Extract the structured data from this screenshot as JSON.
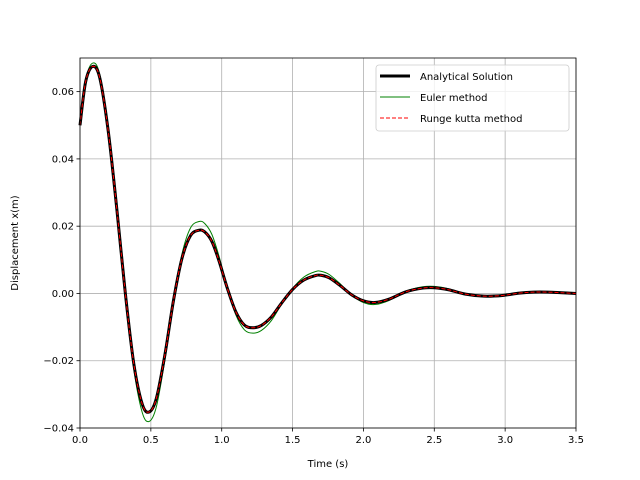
{
  "chart_data": {
    "type": "line",
    "title": "",
    "xlabel": "Time (s)",
    "ylabel": "Displacement x(m)",
    "xlim": [
      0.0,
      3.5
    ],
    "ylim": [
      -0.04,
      0.07
    ],
    "xticks": [
      0.0,
      0.5,
      1.0,
      1.5,
      2.0,
      2.5,
      3.0,
      3.5
    ],
    "xtick_labels": [
      "0.0",
      "0.5",
      "1.0",
      "1.5",
      "2.0",
      "2.5",
      "3.0",
      "3.5"
    ],
    "yticks": [
      -0.04,
      -0.02,
      0.0,
      0.02,
      0.04,
      0.06
    ],
    "ytick_labels": [
      "−0.04",
      "−0.02",
      "0.00",
      "0.02",
      "0.04",
      "0.06"
    ],
    "grid": true,
    "legend_position": "top-right",
    "series": [
      {
        "name": "Analytical Solution",
        "color": "#000000",
        "style": "solid-thick",
        "x": [
          0.0,
          0.04,
          0.09,
          0.14,
          0.2,
          0.26,
          0.32,
          0.38,
          0.44,
          0.49,
          0.54,
          0.6,
          0.66,
          0.72,
          0.78,
          0.84,
          0.88,
          0.93,
          0.98,
          1.04,
          1.1,
          1.16,
          1.22,
          1.28,
          1.35,
          1.42,
          1.5,
          1.58,
          1.66,
          1.7,
          1.76,
          1.84,
          1.92,
          2.0,
          2.08,
          2.18,
          2.3,
          2.42,
          2.5,
          2.6,
          2.72,
          2.85,
          2.98,
          3.1,
          3.2,
          3.3,
          3.4,
          3.5
        ],
        "y": [
          0.05,
          0.063,
          0.0675,
          0.064,
          0.048,
          0.025,
          0.0,
          -0.021,
          -0.033,
          -0.0352,
          -0.031,
          -0.018,
          -0.002,
          0.0105,
          0.0172,
          0.0188,
          0.0183,
          0.0155,
          0.0098,
          0.0015,
          -0.0055,
          -0.0094,
          -0.0102,
          -0.0095,
          -0.007,
          -0.003,
          0.0012,
          0.004,
          0.0053,
          0.0054,
          0.0046,
          0.0022,
          -0.0005,
          -0.0022,
          -0.0027,
          -0.0017,
          0.0005,
          0.0016,
          0.0017,
          0.0011,
          -0.0002,
          -0.0008,
          -0.0006,
          0.0001,
          0.0004,
          0.0004,
          0.0002,
          0.0
        ]
      },
      {
        "name": "Euler method",
        "color": "#008000",
        "style": "solid-thin",
        "x": [
          0.0,
          0.04,
          0.09,
          0.14,
          0.2,
          0.26,
          0.32,
          0.38,
          0.44,
          0.49,
          0.54,
          0.6,
          0.66,
          0.72,
          0.78,
          0.84,
          0.88,
          0.93,
          0.98,
          1.04,
          1.1,
          1.16,
          1.22,
          1.28,
          1.35,
          1.42,
          1.5,
          1.58,
          1.66,
          1.7,
          1.76,
          1.84,
          1.92,
          2.0,
          2.08,
          2.18,
          2.3,
          2.42,
          2.5,
          2.6,
          2.72,
          2.85,
          2.98,
          3.1,
          3.2,
          3.3,
          3.4,
          3.5
        ],
        "y": [
          0.05,
          0.0635,
          0.0685,
          0.065,
          0.049,
          0.0255,
          0.0,
          -0.0225,
          -0.0355,
          -0.038,
          -0.0335,
          -0.0195,
          -0.0022,
          0.0118,
          0.0195,
          0.0214,
          0.0208,
          0.0176,
          0.0112,
          0.0017,
          -0.0064,
          -0.0108,
          -0.0118,
          -0.011,
          -0.0081,
          -0.0034,
          0.0015,
          0.0049,
          0.0065,
          0.0066,
          0.0056,
          0.0027,
          -0.0006,
          -0.0027,
          -0.0033,
          -0.0021,
          0.0007,
          0.002,
          0.0021,
          0.0014,
          -0.0003,
          -0.001,
          -0.0008,
          0.0001,
          0.0005,
          0.0005,
          0.0003,
          0.0
        ]
      },
      {
        "name": "Runge kutta method",
        "color": "#ff0000",
        "style": "dashed",
        "x": [
          0.0,
          0.04,
          0.09,
          0.14,
          0.2,
          0.26,
          0.32,
          0.38,
          0.44,
          0.49,
          0.54,
          0.6,
          0.66,
          0.72,
          0.78,
          0.84,
          0.88,
          0.93,
          0.98,
          1.04,
          1.1,
          1.16,
          1.22,
          1.28,
          1.35,
          1.42,
          1.5,
          1.58,
          1.66,
          1.7,
          1.76,
          1.84,
          1.92,
          2.0,
          2.08,
          2.18,
          2.3,
          2.42,
          2.5,
          2.6,
          2.72,
          2.85,
          2.98,
          3.1,
          3.2,
          3.3,
          3.4,
          3.5
        ],
        "y": [
          0.05,
          0.063,
          0.0675,
          0.064,
          0.048,
          0.025,
          0.0,
          -0.021,
          -0.033,
          -0.0352,
          -0.031,
          -0.018,
          -0.002,
          0.0105,
          0.0172,
          0.0188,
          0.0183,
          0.0155,
          0.0098,
          0.0015,
          -0.0055,
          -0.0094,
          -0.0102,
          -0.0095,
          -0.007,
          -0.003,
          0.0012,
          0.004,
          0.0053,
          0.0054,
          0.0046,
          0.0022,
          -0.0005,
          -0.0022,
          -0.0027,
          -0.0017,
          0.0005,
          0.0016,
          0.0017,
          0.0011,
          -0.0002,
          -0.0008,
          -0.0006,
          0.0001,
          0.0004,
          0.0004,
          0.0002,
          0.0
        ]
      }
    ]
  }
}
